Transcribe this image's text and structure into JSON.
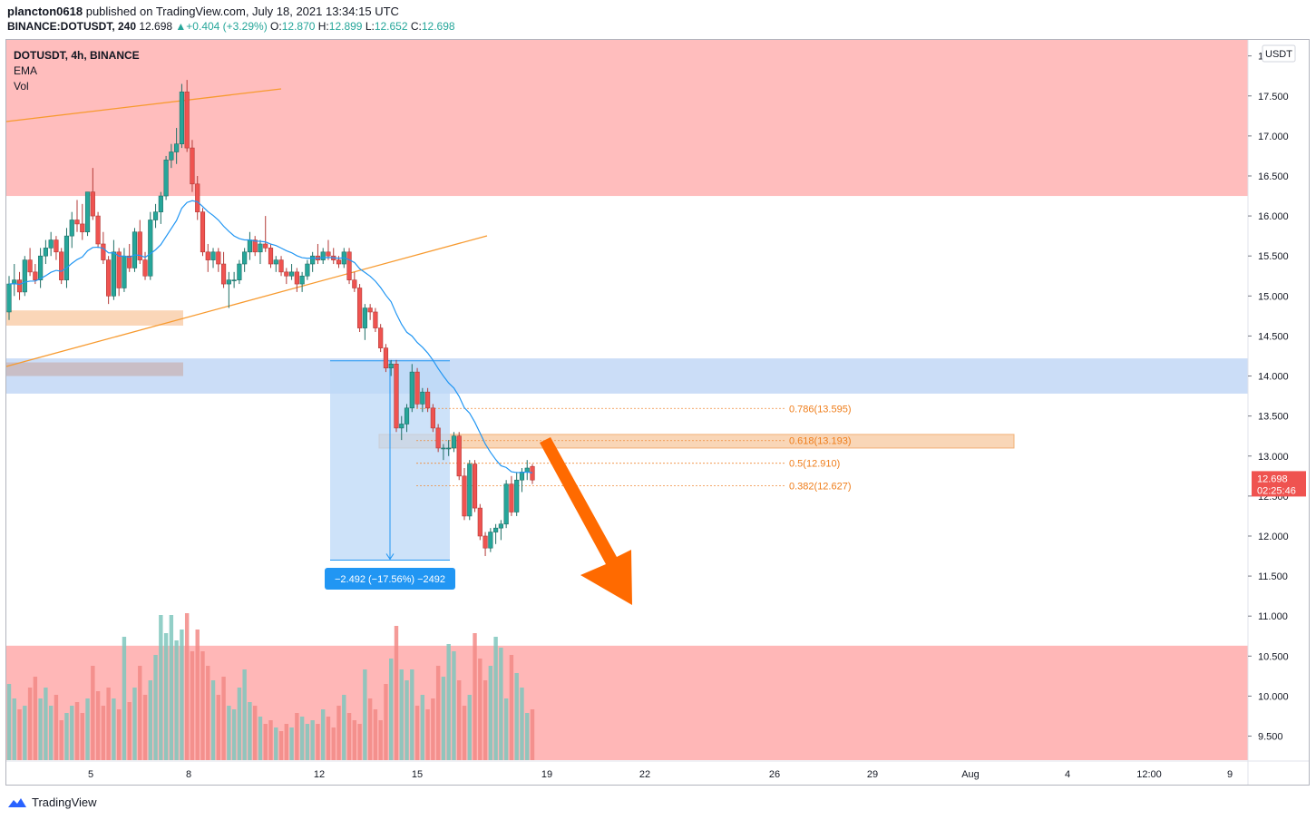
{
  "header": {
    "author": "plancton0618",
    "published": "published on TradingView.com, July 18, 2021 13:34:15 UTC",
    "symbol_line": "BINANCE:DOTUSDT, 240",
    "last": "12.698",
    "change": "▲+0.404 (+3.29%)",
    "o_label": "O:",
    "o_value": "12.870",
    "h_label": "H:",
    "h_value": "12.899",
    "l_label": "L:",
    "l_value": "12.652",
    "c_label": "C:",
    "c_value": "12.698"
  },
  "legend": {
    "symbol": "DOTUSDT, 4h, BINANCE",
    "ema": "EMA",
    "vol": "Vol"
  },
  "footer": {
    "brand": "TradingView"
  },
  "colors": {
    "up": "#26a69a",
    "down": "#ef5350",
    "ema": "#2196f3",
    "resistance_zone": "#ffb6b6",
    "support_zone": "#c5d9f6",
    "fib_zone": "#f9d2b0",
    "arrow": "#ff6a00",
    "trendline": "#f79a2f"
  },
  "chart_data": {
    "type": "candlestick",
    "currency_label": "USDT",
    "y_ticks": [
      "18.000",
      "17.500",
      "17.000",
      "16.500",
      "16.000",
      "15.500",
      "15.000",
      "14.500",
      "14.000",
      "13.500",
      "13.000",
      "12.500",
      "12.000",
      "11.500",
      "11.000",
      "10.500",
      "10.000",
      "9.500"
    ],
    "x_ticks": [
      "5",
      "8",
      "12",
      "15",
      "19",
      "22",
      "26",
      "29",
      "Aug",
      "4",
      "12:00",
      "9"
    ],
    "ylim": [
      9.2,
      18.2
    ],
    "price_label": {
      "value": "12.698",
      "countdown": "02:25:46"
    },
    "fib_levels": [
      {
        "label": "0.786(13.595)",
        "price": 13.595
      },
      {
        "label": "0.618(13.193)",
        "price": 13.193
      },
      {
        "label": "0.5(12.910)",
        "price": 12.91
      },
      {
        "label": "0.382(12.627)",
        "price": 12.627
      }
    ],
    "measure": {
      "label": "−2.492 (−17.56%) −2492",
      "from": 14.19,
      "to": 11.7
    },
    "zones": [
      {
        "name": "resistance",
        "from": 16.25,
        "to": 18.2
      },
      {
        "name": "support",
        "from": 13.78,
        "to": 14.22
      },
      {
        "name": "fib-zone",
        "from": 13.1,
        "to": 13.27
      },
      {
        "name": "lower-volume-zone",
        "from": 9.2,
        "to": 10.63
      }
    ],
    "ohlc": [
      [
        14.8,
        15.25,
        14.7,
        15.15
      ],
      [
        15.15,
        15.4,
        15.0,
        15.2
      ],
      [
        15.2,
        15.3,
        14.95,
        15.05
      ],
      [
        15.05,
        15.5,
        15.0,
        15.45
      ],
      [
        15.45,
        15.6,
        15.25,
        15.3
      ],
      [
        15.3,
        15.4,
        15.15,
        15.2
      ],
      [
        15.2,
        15.6,
        15.1,
        15.5
      ],
      [
        15.5,
        15.7,
        15.4,
        15.6
      ],
      [
        15.6,
        15.8,
        15.5,
        15.7
      ],
      [
        15.7,
        15.75,
        15.45,
        15.55
      ],
      [
        15.55,
        15.6,
        15.15,
        15.2
      ],
      [
        15.2,
        15.85,
        15.1,
        15.75
      ],
      [
        15.75,
        16.05,
        15.6,
        15.95
      ],
      [
        15.95,
        16.2,
        15.8,
        15.9
      ],
      [
        15.9,
        16.15,
        15.7,
        15.8
      ],
      [
        15.8,
        16.3,
        15.75,
        16.3
      ],
      [
        16.3,
        16.6,
        15.95,
        16.0
      ],
      [
        16.0,
        16.05,
        15.6,
        15.65
      ],
      [
        15.65,
        15.8,
        15.4,
        15.45
      ],
      [
        15.45,
        15.5,
        14.9,
        15.0
      ],
      [
        15.0,
        15.7,
        14.95,
        15.55
      ],
      [
        15.55,
        15.6,
        15.0,
        15.1
      ],
      [
        15.1,
        15.6,
        15.05,
        15.5
      ],
      [
        15.5,
        15.65,
        15.3,
        15.35
      ],
      [
        15.35,
        15.85,
        15.3,
        15.8
      ],
      [
        15.8,
        15.95,
        15.4,
        15.45
      ],
      [
        15.45,
        15.55,
        15.2,
        15.25
      ],
      [
        15.25,
        16.05,
        15.2,
        15.95
      ],
      [
        15.95,
        16.15,
        15.85,
        16.05
      ],
      [
        16.05,
        16.3,
        15.9,
        16.25
      ],
      [
        16.25,
        16.75,
        16.2,
        16.7
      ],
      [
        16.7,
        16.9,
        16.6,
        16.8
      ],
      [
        16.8,
        17.1,
        16.65,
        16.9
      ],
      [
        16.9,
        17.65,
        16.85,
        17.55
      ],
      [
        17.55,
        17.7,
        16.8,
        16.85
      ],
      [
        16.85,
        16.95,
        16.3,
        16.4
      ],
      [
        16.4,
        16.5,
        15.95,
        16.05
      ],
      [
        16.05,
        16.1,
        15.5,
        15.55
      ],
      [
        15.55,
        15.65,
        15.3,
        15.45
      ],
      [
        15.45,
        15.6,
        15.35,
        15.55
      ],
      [
        15.55,
        15.6,
        15.3,
        15.4
      ],
      [
        15.4,
        15.55,
        15.1,
        15.15
      ],
      [
        15.15,
        15.3,
        14.85,
        15.2
      ],
      [
        15.2,
        15.3,
        15.1,
        15.2
      ],
      [
        15.2,
        15.45,
        15.15,
        15.4
      ],
      [
        15.4,
        15.6,
        15.3,
        15.55
      ],
      [
        15.55,
        15.8,
        15.45,
        15.7
      ],
      [
        15.7,
        15.75,
        15.5,
        15.55
      ],
      [
        15.55,
        15.7,
        15.4,
        15.65
      ],
      [
        15.65,
        16.0,
        15.55,
        15.6
      ],
      [
        15.6,
        15.65,
        15.35,
        15.4
      ],
      [
        15.4,
        15.5,
        15.3,
        15.45
      ],
      [
        15.45,
        15.5,
        15.25,
        15.3
      ],
      [
        15.3,
        15.35,
        15.15,
        15.25
      ],
      [
        15.25,
        15.4,
        15.2,
        15.3
      ],
      [
        15.3,
        15.35,
        15.05,
        15.15
      ],
      [
        15.15,
        15.3,
        15.05,
        15.25
      ],
      [
        15.25,
        15.45,
        15.2,
        15.4
      ],
      [
        15.4,
        15.55,
        15.3,
        15.5
      ],
      [
        15.5,
        15.65,
        15.4,
        15.45
      ],
      [
        15.45,
        15.6,
        15.4,
        15.55
      ],
      [
        15.55,
        15.7,
        15.45,
        15.5
      ],
      [
        15.5,
        15.6,
        15.4,
        15.45
      ],
      [
        15.45,
        15.5,
        15.35,
        15.4
      ],
      [
        15.4,
        15.6,
        15.35,
        15.55
      ],
      [
        15.55,
        15.6,
        15.15,
        15.2
      ],
      [
        15.2,
        15.3,
        15.05,
        15.1
      ],
      [
        15.1,
        15.15,
        14.55,
        14.6
      ],
      [
        14.6,
        14.9,
        14.45,
        14.85
      ],
      [
        14.85,
        14.9,
        14.7,
        14.8
      ],
      [
        14.8,
        14.85,
        14.55,
        14.6
      ],
      [
        14.6,
        14.65,
        14.3,
        14.35
      ],
      [
        14.35,
        14.4,
        14.05,
        14.1
      ],
      [
        14.1,
        14.2,
        14.0,
        14.15
      ],
      [
        14.15,
        14.2,
        13.3,
        13.35
      ],
      [
        13.35,
        13.5,
        13.2,
        13.4
      ],
      [
        13.4,
        13.65,
        13.3,
        13.6
      ],
      [
        13.6,
        14.15,
        13.55,
        14.05
      ],
      [
        14.05,
        14.1,
        13.6,
        13.65
      ],
      [
        13.65,
        13.85,
        13.55,
        13.8
      ],
      [
        13.8,
        13.85,
        13.55,
        13.6
      ],
      [
        13.6,
        13.65,
        13.3,
        13.35
      ],
      [
        13.35,
        13.4,
        13.05,
        13.1
      ],
      [
        13.1,
        13.15,
        12.95,
        13.1
      ],
      [
        13.1,
        13.2,
        13.0,
        13.1
      ],
      [
        13.1,
        13.3,
        13.05,
        13.25
      ],
      [
        13.25,
        13.3,
        12.7,
        12.75
      ],
      [
        12.75,
        12.85,
        12.2,
        12.25
      ],
      [
        12.25,
        12.95,
        12.2,
        12.9
      ],
      [
        12.9,
        12.95,
        12.3,
        12.35
      ],
      [
        12.35,
        12.4,
        11.95,
        12.0
      ],
      [
        12.0,
        12.05,
        11.75,
        11.85
      ],
      [
        11.85,
        12.1,
        11.8,
        12.05
      ],
      [
        12.05,
        12.15,
        11.9,
        12.1
      ],
      [
        12.1,
        12.2,
        11.95,
        12.15
      ],
      [
        12.15,
        12.7,
        12.1,
        12.65
      ],
      [
        12.65,
        12.75,
        12.25,
        12.3
      ],
      [
        12.3,
        12.8,
        12.25,
        12.7
      ],
      [
        12.7,
        12.85,
        12.55,
        12.8
      ],
      [
        12.8,
        12.95,
        12.7,
        12.85
      ],
      [
        12.87,
        12.9,
        12.65,
        12.7
      ]
    ],
    "volume": [
      0.42,
      0.34,
      0.28,
      0.3,
      0.4,
      0.46,
      0.34,
      0.4,
      0.3,
      0.36,
      0.22,
      0.26,
      0.3,
      0.32,
      0.26,
      0.34,
      0.52,
      0.38,
      0.3,
      0.4,
      0.34,
      0.28,
      0.68,
      0.32,
      0.4,
      0.52,
      0.36,
      0.44,
      0.58,
      0.8,
      0.7,
      0.8,
      0.66,
      0.72,
      0.81,
      0.6,
      0.72,
      0.6,
      0.52,
      0.44,
      0.36,
      0.46,
      0.3,
      0.28,
      0.4,
      0.5,
      0.32,
      0.3,
      0.24,
      0.2,
      0.22,
      0.18,
      0.16,
      0.2,
      0.18,
      0.26,
      0.24,
      0.2,
      0.22,
      0.2,
      0.28,
      0.24,
      0.18,
      0.3,
      0.36,
      0.26,
      0.22,
      0.2,
      0.5,
      0.34,
      0.28,
      0.22,
      0.42,
      0.56,
      0.74,
      0.5,
      0.44,
      0.5,
      0.3,
      0.36,
      0.28,
      0.34,
      0.52,
      0.46,
      0.64,
      0.6,
      0.44,
      0.3,
      0.36,
      0.7,
      0.56,
      0.44,
      0.52,
      0.68,
      0.62,
      0.34,
      0.58,
      0.48,
      0.4,
      0.26,
      0.28
    ]
  }
}
